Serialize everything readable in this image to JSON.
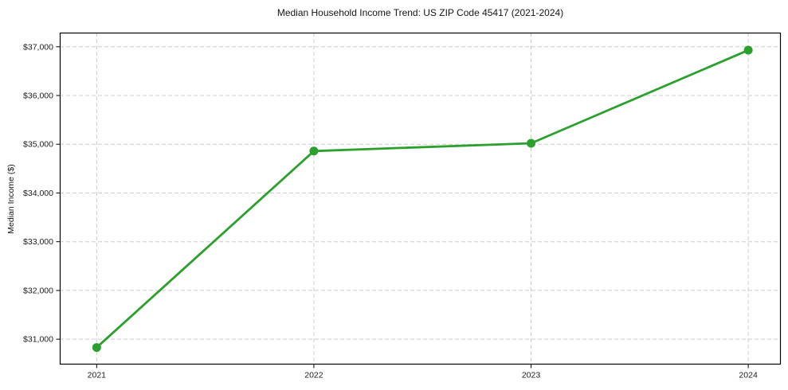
{
  "chart_data": {
    "type": "line",
    "title": "Median Household Income Trend: US ZIP Code 45417 (2021-2024)",
    "xlabel": "",
    "ylabel": "Median Income ($)",
    "x": [
      2021,
      2022,
      2023,
      2024
    ],
    "series": [
      {
        "name": "median-household-income",
        "values": [
          30830,
          34860,
          35020,
          36930
        ],
        "color": "#2ca02c",
        "marker": "circle",
        "marker_size": 5.5,
        "line_width": 2.8
      }
    ],
    "xticks": [
      2021,
      2022,
      2023,
      2024
    ],
    "xtick_labels": [
      "2021",
      "2022",
      "2023",
      "2024"
    ],
    "yticks": [
      31000,
      32000,
      33000,
      34000,
      35000,
      36000,
      37000
    ],
    "ytick_labels": [
      "$31,000",
      "$32,000",
      "$33,000",
      "$34,000",
      "$35,000",
      "$36,000",
      "$37,000"
    ],
    "xlim": [
      2020.83,
      2024.15
    ],
    "ylim": [
      30480,
      37290
    ],
    "grid": true,
    "grid_style": "dashed",
    "grid_color": "#cbcbcb",
    "axis_color": "#000000",
    "tick_color": "#000000",
    "background": "#ffffff",
    "legend": "none"
  }
}
